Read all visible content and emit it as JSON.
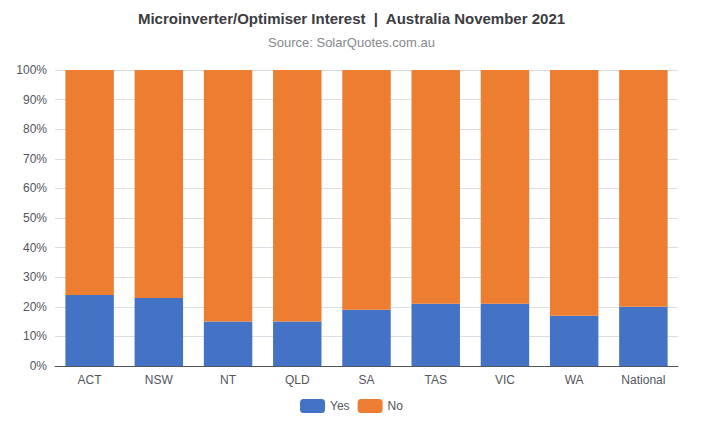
{
  "chart_data": {
    "type": "bar",
    "title": "Microinverter/Optimiser Interest  |  Australia November 2021",
    "subtitle": "Source: SolarQuotes.com.au",
    "categories": [
      "ACT",
      "NSW",
      "NT",
      "QLD",
      "SA",
      "TAS",
      "VIC",
      "WA",
      "National"
    ],
    "series": [
      {
        "name": "Yes",
        "color": "#4472C4",
        "values": [
          24,
          23,
          15,
          15,
          19,
          21,
          21,
          17,
          20
        ]
      },
      {
        "name": "No",
        "color": "#ED7D31",
        "values": [
          76,
          77,
          85,
          85,
          81,
          79,
          79,
          83,
          80
        ]
      }
    ],
    "stacked": true,
    "ylim": [
      0,
      100
    ],
    "yticks": [
      {
        "value": 0,
        "label": "0%"
      },
      {
        "value": 10,
        "label": "10%"
      },
      {
        "value": 20,
        "label": "20%"
      },
      {
        "value": 30,
        "label": "30%"
      },
      {
        "value": 40,
        "label": "40%"
      },
      {
        "value": 50,
        "label": "50%"
      },
      {
        "value": 60,
        "label": "60%"
      },
      {
        "value": 70,
        "label": "70%"
      },
      {
        "value": 80,
        "label": "80%"
      },
      {
        "value": 90,
        "label": "90%"
      },
      {
        "value": 100,
        "label": "100%"
      }
    ],
    "grid": true,
    "legend": "bottom"
  }
}
